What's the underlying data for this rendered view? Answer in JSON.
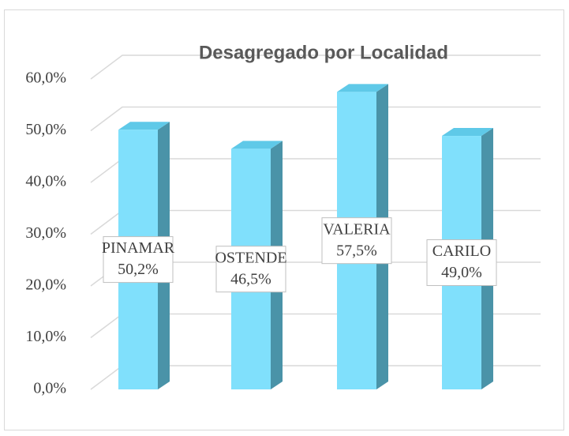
{
  "chart_data": {
    "type": "bar",
    "title": "Desagregado por Localidad",
    "categories": [
      "PINAMAR",
      "OSTENDE",
      "VALERIA",
      "CARILO"
    ],
    "values": [
      50.2,
      46.5,
      57.5,
      49.0
    ],
    "value_labels": [
      "50,2%",
      "46,5%",
      "57,5%",
      "49,0%"
    ],
    "color": "#80e0fc",
    "ylim": [
      0,
      60
    ],
    "yticks": [
      {
        "value": 0,
        "label": "0,0%"
      },
      {
        "value": 10,
        "label": "10,0%"
      },
      {
        "value": 20,
        "label": "20,0%"
      },
      {
        "value": 30,
        "label": "30,0%"
      },
      {
        "value": 40,
        "label": "40,0%"
      },
      {
        "value": 50,
        "label": "50,0%"
      },
      {
        "value": 60,
        "label": "60,0%"
      }
    ],
    "grid": true
  }
}
